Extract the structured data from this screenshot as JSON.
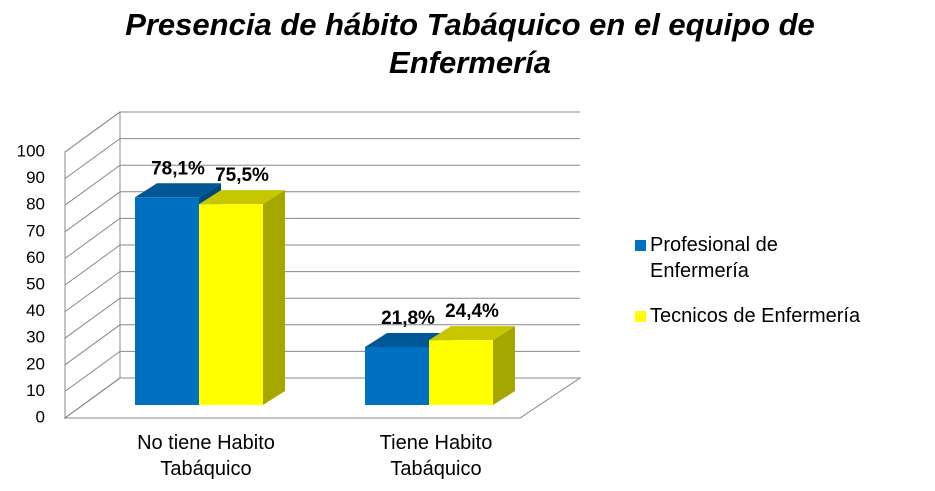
{
  "chart_data": {
    "type": "bar3d",
    "title": "Presencia de hábito Tabáquico en el equipo de Enfermería",
    "categories": [
      "No tiene Habito Tabáquico",
      "Tiene Habito Tabáquico"
    ],
    "series": [
      {
        "name": "Profesional de Enfermería",
        "color": "#0070c0",
        "values": [
          78.1,
          21.8
        ],
        "value_labels": [
          "78,1%",
          "21,8%"
        ]
      },
      {
        "name": "Tecnicos de Enfermería",
        "color": "#ffff00",
        "values": [
          75.5,
          24.4
        ],
        "value_labels": [
          "75,5%",
          "24,4%"
        ]
      }
    ],
    "ylim": [
      0,
      100
    ],
    "yticks": [
      0,
      10,
      20,
      30,
      40,
      50,
      60,
      70,
      80,
      90,
      100
    ],
    "grid": true,
    "legend": "right"
  }
}
